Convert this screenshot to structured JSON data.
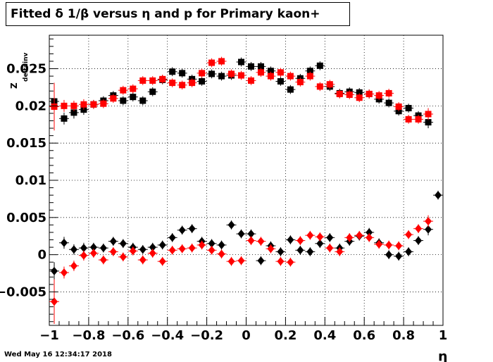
{
  "chart_data": {
    "type": "scatter",
    "title": "Fitted δ 1/β versus η and p for Primary kaon+",
    "xlabel": "η",
    "ylabel": "Z_{deltainv}",
    "ylabel_main": "Z",
    "ylabel_sub": "deltainv",
    "xlim": [
      -1.0,
      1.0
    ],
    "ylim": [
      -0.0095,
      0.0295
    ],
    "grid": true,
    "x_tick_labels": [
      "−1",
      "−0.8",
      "−0.6",
      "−0.4",
      "−0.2",
      "0",
      "0.2",
      "0.4",
      "0.6",
      "0.8",
      "1"
    ],
    "x_tick_values": [
      -1.0,
      -0.8,
      -0.6,
      -0.4,
      -0.2,
      0.0,
      0.2,
      0.4,
      0.6,
      0.8,
      1.0
    ],
    "y_tick_labels": [
      "−0.005",
      "0",
      "0.005",
      "0.01",
      "0.015",
      "0.02",
      "0.025"
    ],
    "y_tick_values": [
      -0.005,
      0.0,
      0.005,
      0.01,
      0.015,
      0.02,
      0.025
    ],
    "series": [
      {
        "color": "#000000",
        "marker": "square",
        "x": [
          -0.975,
          -0.925,
          -0.875,
          -0.825,
          -0.775,
          -0.725,
          -0.675,
          -0.625,
          -0.575,
          -0.525,
          -0.475,
          -0.425,
          -0.375,
          -0.325,
          -0.275,
          -0.225,
          -0.175,
          -0.125,
          -0.075,
          -0.025,
          0.025,
          0.075,
          0.125,
          0.175,
          0.225,
          0.275,
          0.325,
          0.375,
          0.425,
          0.475,
          0.525,
          0.575,
          0.625,
          0.675,
          0.725,
          0.775,
          0.825,
          0.875,
          0.925
        ],
        "y": [
          0.0206,
          0.0183,
          0.0191,
          0.0195,
          0.0202,
          0.0207,
          0.0214,
          0.0207,
          0.0212,
          0.0207,
          0.0219,
          0.0235,
          0.0246,
          0.0244,
          0.0236,
          0.0233,
          0.0243,
          0.024,
          0.0241,
          0.0259,
          0.0253,
          0.0253,
          0.0247,
          0.0233,
          0.0222,
          0.0237,
          0.0247,
          0.0254,
          0.0226,
          0.0217,
          0.0219,
          0.0218,
          0.0216,
          0.0209,
          0.0204,
          0.0193,
          0.0197,
          0.0187,
          0.0178
        ],
        "yerr": [
          0.0025,
          0.0008,
          0.0008,
          0.0007,
          0.0006,
          0.0006,
          0.0006,
          0.0006,
          0.0006,
          0.0006,
          0.0006,
          0.0006,
          0.0006,
          0.0006,
          0.0006,
          0.0006,
          0.0006,
          0.0006,
          0.0006,
          0.0006,
          0.0006,
          0.0006,
          0.0006,
          0.0006,
          0.0006,
          0.0006,
          0.0006,
          0.0006,
          0.0006,
          0.0006,
          0.0006,
          0.0006,
          0.0006,
          0.0006,
          0.0006,
          0.0006,
          0.0006,
          0.0006,
          0.0008
        ]
      },
      {
        "color": "#ff0000",
        "marker": "square",
        "x": [
          -0.975,
          -0.925,
          -0.875,
          -0.825,
          -0.775,
          -0.725,
          -0.675,
          -0.625,
          -0.575,
          -0.525,
          -0.475,
          -0.425,
          -0.375,
          -0.325,
          -0.275,
          -0.225,
          -0.175,
          -0.125,
          -0.075,
          -0.025,
          0.025,
          0.075,
          0.125,
          0.175,
          0.225,
          0.275,
          0.325,
          0.375,
          0.425,
          0.475,
          0.525,
          0.575,
          0.625,
          0.675,
          0.725,
          0.775,
          0.825,
          0.875,
          0.925
        ],
        "y": [
          0.0199,
          0.02,
          0.02,
          0.0202,
          0.0202,
          0.0203,
          0.021,
          0.0221,
          0.0223,
          0.0234,
          0.0234,
          0.0236,
          0.0231,
          0.0228,
          0.0231,
          0.0244,
          0.0258,
          0.026,
          0.0243,
          0.0241,
          0.0234,
          0.0245,
          0.024,
          0.0245,
          0.024,
          0.0232,
          0.024,
          0.0226,
          0.0229,
          0.0216,
          0.0215,
          0.0211,
          0.0216,
          0.0214,
          0.0217,
          0.0199,
          0.0182,
          0.0182,
          0.0189
        ],
        "yerr": [
          0.0032,
          0.0008,
          0.0007,
          0.0007,
          0.0006,
          0.0006,
          0.0006,
          0.0006,
          0.0006,
          0.0006,
          0.0006,
          0.0006,
          0.0006,
          0.0006,
          0.0006,
          0.0006,
          0.0006,
          0.0006,
          0.0006,
          0.0006,
          0.0006,
          0.0006,
          0.0006,
          0.0006,
          0.0006,
          0.0006,
          0.0006,
          0.0006,
          0.0006,
          0.0006,
          0.0006,
          0.0006,
          0.0006,
          0.0006,
          0.0006,
          0.0006,
          0.0006,
          0.0006,
          0.0008
        ]
      },
      {
        "color": "#000000",
        "marker": "diamond",
        "x": [
          -0.975,
          -0.925,
          -0.875,
          -0.825,
          -0.775,
          -0.725,
          -0.675,
          -0.625,
          -0.575,
          -0.525,
          -0.475,
          -0.425,
          -0.375,
          -0.325,
          -0.275,
          -0.225,
          -0.175,
          -0.125,
          -0.075,
          -0.025,
          0.025,
          0.075,
          0.125,
          0.175,
          0.225,
          0.275,
          0.325,
          0.375,
          0.425,
          0.475,
          0.525,
          0.575,
          0.625,
          0.675,
          0.725,
          0.775,
          0.825,
          0.875,
          0.925,
          0.975
        ],
        "y": [
          -0.0022,
          0.0016,
          0.0007,
          0.0009,
          0.001,
          0.0009,
          0.0018,
          0.0015,
          0.001,
          0.0007,
          0.001,
          0.0013,
          0.0023,
          0.0033,
          0.0035,
          0.0018,
          0.0015,
          0.0013,
          0.004,
          0.0028,
          0.0028,
          -0.0008,
          0.0012,
          0.0004,
          0.002,
          0.0006,
          0.0004,
          0.0015,
          0.0023,
          0.0009,
          0.0018,
          0.0025,
          0.003,
          0.0016,
          0.0,
          -0.0002,
          0.0004,
          0.0019,
          0.0034,
          0.008
        ],
        "yerr": [
          0.0012,
          0.0008,
          0.0007,
          0.0007,
          0.0006,
          0.0006,
          0.0006,
          0.0006,
          0.0006,
          0.0006,
          0.0006,
          0.0006,
          0.0006,
          0.0006,
          0.0006,
          0.0006,
          0.0006,
          0.0006,
          0.0006,
          0.0006,
          0.0006,
          0.0006,
          0.0006,
          0.0006,
          0.0006,
          0.0006,
          0.0006,
          0.0006,
          0.0006,
          0.0006,
          0.0006,
          0.0006,
          0.0006,
          0.0006,
          0.0006,
          0.0006,
          0.0006,
          0.0006,
          0.0008,
          0.0006
        ]
      },
      {
        "color": "#ff0000",
        "marker": "diamond",
        "x": [
          -0.975,
          -0.925,
          -0.875,
          -0.825,
          -0.775,
          -0.725,
          -0.675,
          -0.625,
          -0.575,
          -0.525,
          -0.475,
          -0.425,
          -0.375,
          -0.325,
          -0.275,
          -0.225,
          -0.175,
          -0.125,
          -0.075,
          -0.025,
          0.025,
          0.075,
          0.125,
          0.175,
          0.225,
          0.275,
          0.325,
          0.375,
          0.425,
          0.475,
          0.525,
          0.575,
          0.625,
          0.675,
          0.725,
          0.775,
          0.825,
          0.875,
          0.925
        ],
        "y": [
          -0.0063,
          -0.0024,
          -0.0015,
          -0.0001,
          0.0002,
          -0.0007,
          0.0004,
          -0.0003,
          0.0005,
          -0.0007,
          0.0002,
          -0.0009,
          0.0006,
          0.0008,
          0.0009,
          0.0013,
          0.0006,
          0.0001,
          -0.0009,
          -0.0008,
          0.0019,
          0.0018,
          0.0008,
          -0.0009,
          -0.001,
          0.0019,
          0.0026,
          0.0024,
          0.0009,
          0.0004,
          0.0023,
          0.0026,
          0.0023,
          0.0014,
          0.0013,
          0.0012,
          0.0027,
          0.0035,
          0.0045
        ],
        "yerr": [
          0.003,
          0.0008,
          0.0007,
          0.0007,
          0.0006,
          0.0006,
          0.0006,
          0.0006,
          0.0006,
          0.0006,
          0.0006,
          0.0006,
          0.0006,
          0.0006,
          0.0006,
          0.0006,
          0.0006,
          0.0006,
          0.0006,
          0.0006,
          0.0006,
          0.0006,
          0.0006,
          0.0006,
          0.0006,
          0.0006,
          0.0006,
          0.0006,
          0.0006,
          0.0006,
          0.0006,
          0.0006,
          0.0006,
          0.0006,
          0.0006,
          0.0006,
          0.0006,
          0.0006,
          0.0008
        ]
      }
    ]
  },
  "footer": {
    "timestamp": "Wed May 16 12:34:17 2018"
  }
}
